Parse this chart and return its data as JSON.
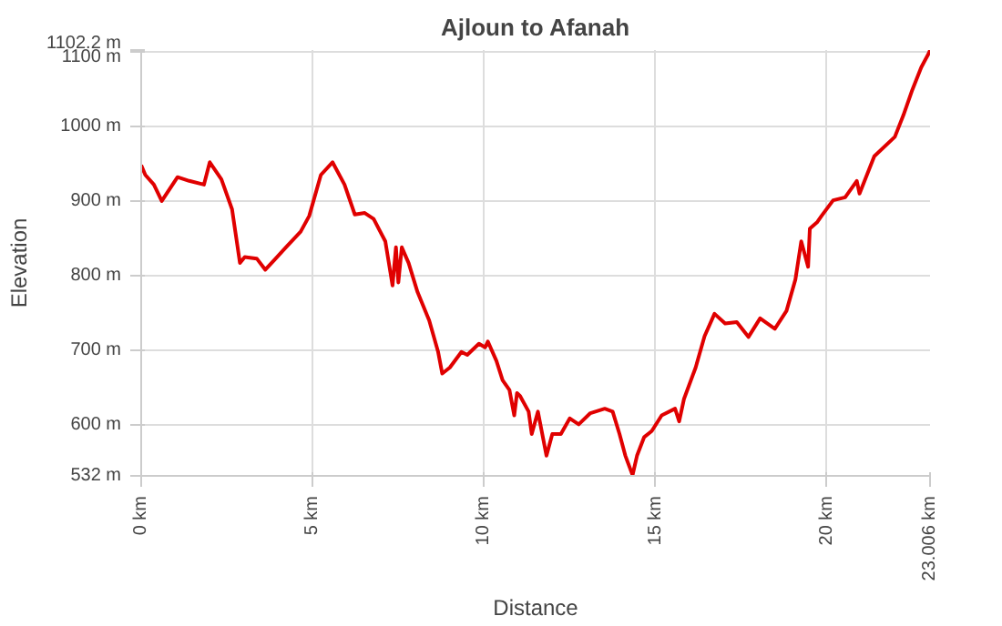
{
  "chart_data": {
    "type": "line",
    "title": "Ajloun to Afanah",
    "xlabel": "Distance",
    "ylabel": "Elevation",
    "xlim": [
      0,
      23.006
    ],
    "ylim": [
      532,
      1102.2
    ],
    "xticks": [
      {
        "value": 0,
        "label": "0 km"
      },
      {
        "value": 5,
        "label": "5 km"
      },
      {
        "value": 10,
        "label": "10 km"
      },
      {
        "value": 15,
        "label": "15 km"
      },
      {
        "value": 20,
        "label": "20 km"
      },
      {
        "value": 23.006,
        "label": "23.006 km"
      }
    ],
    "yticks": [
      {
        "value": 532,
        "label": "532 m"
      },
      {
        "value": 600,
        "label": "600 m"
      },
      {
        "value": 700,
        "label": "700 m"
      },
      {
        "value": 800,
        "label": "800 m"
      },
      {
        "value": 900,
        "label": "900 m"
      },
      {
        "value": 1000,
        "label": "1000 m"
      },
      {
        "value": 1100,
        "label": "1100 m"
      },
      {
        "value": 1102.2,
        "label": "1102.2 m"
      }
    ],
    "grid": true,
    "marker": "none",
    "line_style": "solid",
    "series": [
      {
        "color": "#e00000",
        "x": [
          0,
          0.12,
          0.37,
          0.6,
          1.06,
          1.4,
          1.83,
          2.0,
          2.34,
          2.65,
          2.88,
          3.02,
          3.37,
          3.62,
          3.88,
          4.22,
          4.65,
          4.9,
          5.24,
          5.58,
          5.93,
          6.23,
          6.52,
          6.78,
          7.12,
          7.33,
          7.43,
          7.5,
          7.6,
          7.8,
          8.06,
          8.4,
          8.66,
          8.78,
          9.0,
          9.34,
          9.51,
          9.85,
          10.03,
          10.11,
          10.36,
          10.54,
          10.74,
          10.88,
          10.96,
          11.05,
          11.3,
          11.39,
          11.57,
          11.82,
          11.99,
          12.24,
          12.5,
          12.76,
          13.1,
          13.52,
          13.75,
          13.95,
          14.12,
          14.33,
          14.46,
          14.67,
          14.89,
          15.18,
          15.57,
          15.69,
          15.83,
          16.17,
          16.43,
          16.72,
          17.03,
          17.37,
          17.71,
          18.05,
          18.48,
          18.82,
          19.08,
          19.25,
          19.45,
          19.5,
          19.72,
          19.84,
          20.18,
          20.53,
          20.87,
          20.95,
          21.38,
          21.98,
          22.23,
          22.49,
          22.75,
          22.97,
          23.006
        ],
        "values": [
          948,
          935,
          922,
          900,
          932,
          927,
          922,
          952,
          929,
          889,
          817,
          825,
          823,
          808,
          821,
          838,
          859,
          880,
          935,
          952,
          922,
          882,
          884,
          876,
          846,
          787,
          838,
          791,
          838,
          817,
          778,
          740,
          698,
          669,
          677,
          698,
          694,
          709,
          704,
          712,
          686,
          660,
          647,
          613,
          643,
          639,
          618,
          588,
          618,
          559,
          588,
          588,
          609,
          601,
          616,
          622,
          618,
          588,
          559,
          533,
          559,
          584,
          592,
          613,
          622,
          605,
          635,
          677,
          719,
          749,
          736,
          738,
          718,
          743,
          729,
          753,
          795,
          846,
          812,
          863,
          872,
          880,
          901,
          905,
          927,
          910,
          960,
          986,
          1015,
          1049,
          1079,
          1098,
          1102
        ]
      }
    ]
  }
}
